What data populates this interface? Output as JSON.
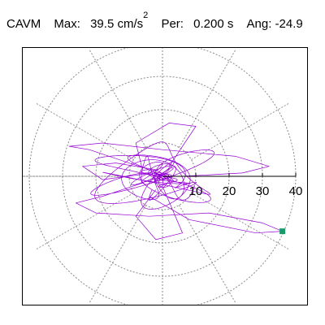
{
  "header": {
    "name": "CAVM",
    "max_label": "Max:",
    "max_value": "39.5",
    "max_unit": "cm/s",
    "max_unit_exp": "2",
    "per_label": "Per:",
    "per_value": "0.200 s",
    "ang_label": "Ang:",
    "ang_value": "-24.9"
  },
  "chart_data": {
    "type": "scatter",
    "subtype": "polar-orbit",
    "radial_ticks": [
      10,
      20,
      30,
      40
    ],
    "radial_tick_labels": [
      "10",
      "20",
      "30",
      "40"
    ],
    "rmax": 44,
    "spokes_deg": [
      0,
      30,
      60,
      90,
      120,
      150,
      180,
      210,
      240,
      270,
      300,
      330
    ],
    "grid": true,
    "trace_color": "#9400d3",
    "marker_color": "#1a9a6a",
    "peak_point": {
      "x": 36.0,
      "y": -16.5,
      "magnitude": 39.5,
      "angle_deg": -24.9
    },
    "orbit_extent": {
      "x": [
        -26,
        36
      ],
      "y": [
        -19,
        16
      ]
    },
    "arrow_to_r": 40
  }
}
